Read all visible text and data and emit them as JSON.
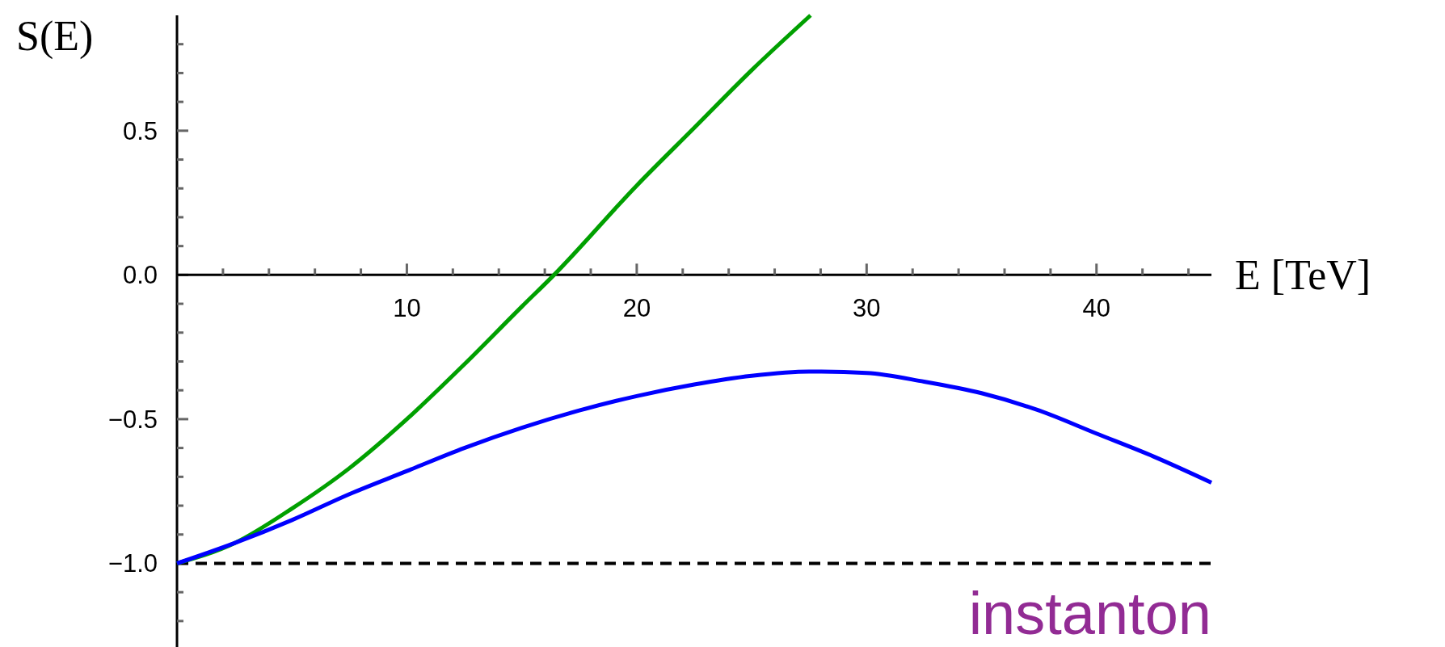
{
  "chart_data": {
    "type": "line",
    "ylabel": "S(E)",
    "xlabel": "E [TeV]",
    "xlim": [
      0,
      45
    ],
    "ylim": [
      -1.29,
      0.9
    ],
    "xticks": [
      {
        "value": 2,
        "label": null
      },
      {
        "value": 4,
        "label": null
      },
      {
        "value": 6,
        "label": null
      },
      {
        "value": 8,
        "label": null
      },
      10,
      {
        "value": 12,
        "label": null
      },
      {
        "value": 14,
        "label": null
      },
      {
        "value": 16,
        "label": null
      },
      {
        "value": 18,
        "label": null
      },
      20,
      {
        "value": 22,
        "label": null
      },
      {
        "value": 24,
        "label": null
      },
      {
        "value": 26,
        "label": null
      },
      {
        "value": 28,
        "label": null
      },
      30,
      {
        "value": 32,
        "label": null
      },
      {
        "value": 34,
        "label": null
      },
      {
        "value": 36,
        "label": null
      },
      {
        "value": 38,
        "label": null
      },
      40,
      {
        "value": 42,
        "label": null
      },
      {
        "value": 44,
        "label": null
      }
    ],
    "yticks": [
      {
        "value": -1.2,
        "label": null
      },
      {
        "value": -1.1,
        "label": null
      },
      {
        "value": -1,
        "label": "−1.0"
      },
      {
        "value": -0.9,
        "label": null
      },
      {
        "value": -0.8,
        "label": null
      },
      {
        "value": -0.7,
        "label": null
      },
      {
        "value": -0.6,
        "label": null
      },
      {
        "value": -0.5,
        "label": "−0.5"
      },
      {
        "value": -0.4,
        "label": null
      },
      {
        "value": -0.3,
        "label": null
      },
      {
        "value": -0.2,
        "label": null
      },
      {
        "value": -0.1,
        "label": null
      },
      {
        "value": 0,
        "label": "0.0"
      },
      {
        "value": 0.1,
        "label": null
      },
      {
        "value": 0.2,
        "label": null
      },
      {
        "value": 0.3,
        "label": null
      },
      {
        "value": 0.4,
        "label": null
      },
      {
        "value": 0.5,
        "label": "0.5"
      },
      {
        "value": 0.6,
        "label": null
      },
      {
        "value": 0.7,
        "label": null
      },
      {
        "value": 0.8,
        "label": null
      }
    ],
    "grid": false,
    "line_style": "solid",
    "series": [
      {
        "color": "#00a000",
        "x": [
          0,
          2.5,
          5,
          7.5,
          10,
          12.5,
          15,
          16.4,
          20,
          22.5,
          25,
          27.56
        ],
        "values": [
          -1,
          -0.93,
          -0.81,
          -0.67,
          -0.5,
          -0.31,
          -0.11,
          0,
          0.31,
          0.51,
          0.71,
          0.9
        ]
      },
      {
        "color": "#0000ff",
        "x": [
          0,
          2.5,
          5,
          7.5,
          10,
          12.5,
          15,
          17.5,
          20,
          22.5,
          25,
          27.5,
          30,
          32.5,
          35,
          37.5,
          40,
          42.5,
          45
        ],
        "values": [
          -1,
          -0.93,
          -0.85,
          -0.76,
          -0.68,
          -0.6,
          -0.53,
          -0.47,
          -0.42,
          -0.38,
          -0.35,
          -0.335,
          -0.34,
          -0.37,
          -0.41,
          -0.47,
          -0.55,
          -0.63,
          -0.72
        ]
      }
    ],
    "ref_lines": [
      {
        "axis": "y",
        "value": -1,
        "label": "instanton",
        "color": "#000000",
        "line_style": "dashed"
      }
    ]
  }
}
